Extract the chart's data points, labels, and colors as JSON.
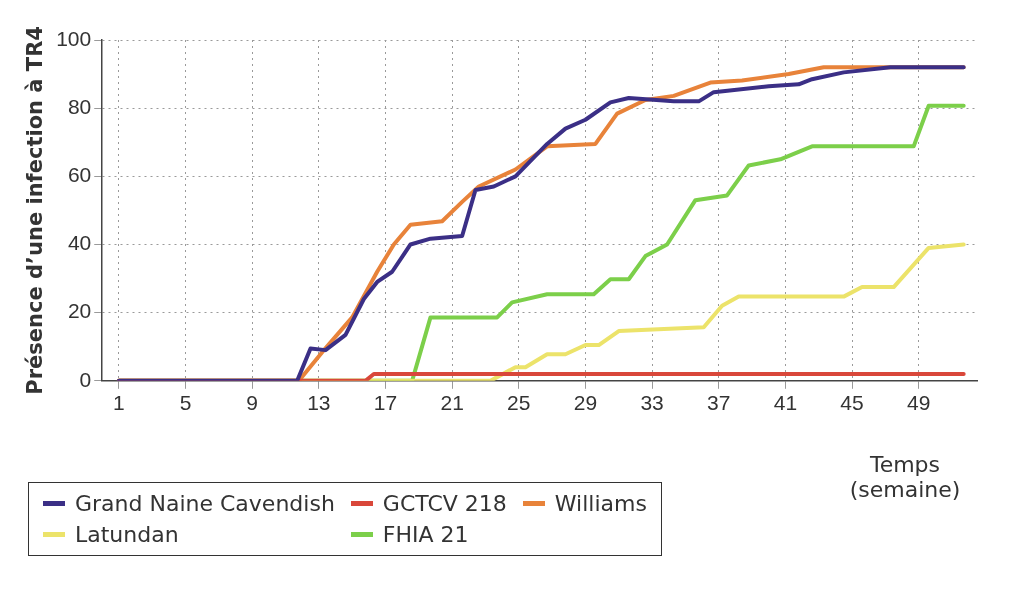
{
  "chart_data": {
    "type": "line",
    "ylabel": "Présence d’une infection à TR4",
    "xlabel": "Temps (semaine)",
    "xlim": [
      0,
      52.5
    ],
    "xticks": [
      1,
      5,
      9,
      13,
      17,
      21,
      25,
      29,
      33,
      37,
      41,
      45,
      49
    ],
    "ylim": [
      0,
      100
    ],
    "yticks": [
      0,
      20,
      40,
      60,
      80,
      100
    ],
    "grid": true,
    "legend": "bottom left",
    "marker": "none",
    "line_style": "solid",
    "series": [
      {
        "name": "Grand Naine Cavendish",
        "color": "#3b2f86",
        "x": [
          1,
          11.7,
          12.5,
          13.4,
          14.6,
          15.7,
          16.5,
          17.4,
          18.5,
          19.7,
          21.6,
          22.4,
          23.5,
          24.8,
          26.7,
          27.8,
          29,
          30.5,
          31.6,
          34.3,
          35.8,
          36.7,
          40,
          41.8,
          42.6,
          44.5,
          47.3,
          51.7
        ],
        "values": [
          0,
          0,
          9.5,
          9,
          13.5,
          24,
          29,
          32,
          40,
          41.7,
          42.5,
          56,
          57,
          60,
          69.5,
          74,
          76.6,
          81.7,
          83,
          82,
          82,
          84.7,
          86.4,
          87,
          88.5,
          90.5,
          92,
          92
        ]
      },
      {
        "name": "GCTCV 218",
        "color": "#d9473a",
        "x": [
          1,
          15.8,
          16.3,
          51.7
        ],
        "values": [
          0,
          0,
          2,
          2
        ]
      },
      {
        "name": "Williams",
        "color": "#e8833a",
        "x": [
          1,
          11.8,
          13.2,
          15,
          16.5,
          17.5,
          18.5,
          20.4,
          21.6,
          22.6,
          24.8,
          26.7,
          29.6,
          30.9,
          32.6,
          34.3,
          36.5,
          38.4,
          41.2,
          43.3,
          51.7
        ],
        "values": [
          0,
          0,
          8.4,
          18.6,
          32,
          40,
          45.8,
          46.8,
          52.5,
          57,
          62,
          68.8,
          69.5,
          78.4,
          82.4,
          83.6,
          87.5,
          88.1,
          90,
          92,
          92
        ]
      },
      {
        "name": "Latundan",
        "color": "#ece36a",
        "x": [
          1,
          23.3,
          24.8,
          25.4,
          26.7,
          27.8,
          29,
          29.8,
          31,
          36.1,
          37.2,
          38.2,
          44.5,
          45.6,
          47.5,
          49.6,
          51.7
        ],
        "values": [
          0,
          0,
          4,
          4,
          7.8,
          7.8,
          10.5,
          10.5,
          14.6,
          15.7,
          22,
          24.7,
          24.7,
          27.5,
          27.5,
          39,
          40
        ]
      },
      {
        "name": "FHIA 21",
        "color": "#7ccf4a",
        "x": [
          1,
          18.6,
          19.7,
          23.7,
          24.6,
          26.7,
          29.5,
          30.5,
          31.6,
          32.6,
          33.9,
          35.6,
          37.5,
          38.8,
          40.7,
          42.6,
          48.7,
          49.6,
          51.7
        ],
        "values": [
          0,
          0,
          18.6,
          18.6,
          23,
          25.4,
          25.4,
          29.8,
          29.8,
          36.6,
          40,
          53,
          54.4,
          63.2,
          65,
          68.8,
          68.8,
          80.7,
          80.7
        ]
      }
    ]
  }
}
